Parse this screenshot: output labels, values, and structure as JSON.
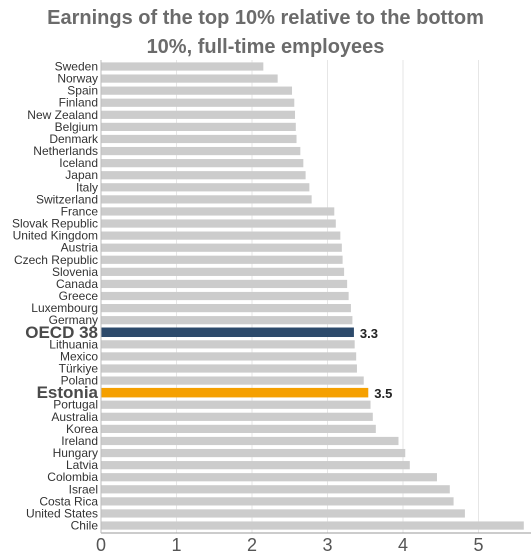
{
  "chart_data": {
    "type": "bar",
    "orientation": "horizontal",
    "title_lines": [
      "Earnings of the top 10% relative to the bottom",
      "10%, full-time employees"
    ],
    "categories": [
      "Sweden",
      "Norway",
      "Spain",
      "Finland",
      "New Zealand",
      "Belgium",
      "Denmark",
      "Netherlands",
      "Iceland",
      "Japan",
      "Italy",
      "Switzerland",
      "France",
      "Slovak Republic",
      "United Kingdom",
      "Austria",
      "Czech Republic",
      "Slovenia",
      "Canada",
      "Greece",
      "Luxembourg",
      "Germany",
      "OECD 38",
      "Lithuania",
      "Mexico",
      "Türkiye",
      "Poland",
      "Estonia",
      "Portugal",
      "Australia",
      "Korea",
      "Ireland",
      "Hungary",
      "Latvia",
      "Colombia",
      "Israel",
      "Costa Rica",
      "United States",
      "Chile"
    ],
    "values": [
      2.15,
      2.34,
      2.53,
      2.56,
      2.57,
      2.58,
      2.59,
      2.64,
      2.68,
      2.71,
      2.76,
      2.79,
      3.09,
      3.11,
      3.17,
      3.19,
      3.2,
      3.22,
      3.26,
      3.28,
      3.31,
      3.33,
      3.35,
      3.36,
      3.38,
      3.39,
      3.48,
      3.54,
      3.57,
      3.6,
      3.64,
      3.94,
      4.03,
      4.09,
      4.45,
      4.62,
      4.67,
      4.82,
      5.6
    ],
    "highlights": {
      "OECD 38": {
        "color": "#2d4a6b",
        "label": "3.3"
      },
      "Estonia": {
        "color": "#f5a000",
        "label": "3.5"
      }
    },
    "default_color": "#cccccc",
    "xlim": [
      0,
      5.6
    ],
    "xticks": [
      0,
      1,
      2,
      3,
      4,
      5
    ],
    "grid": true,
    "legend": "none"
  }
}
